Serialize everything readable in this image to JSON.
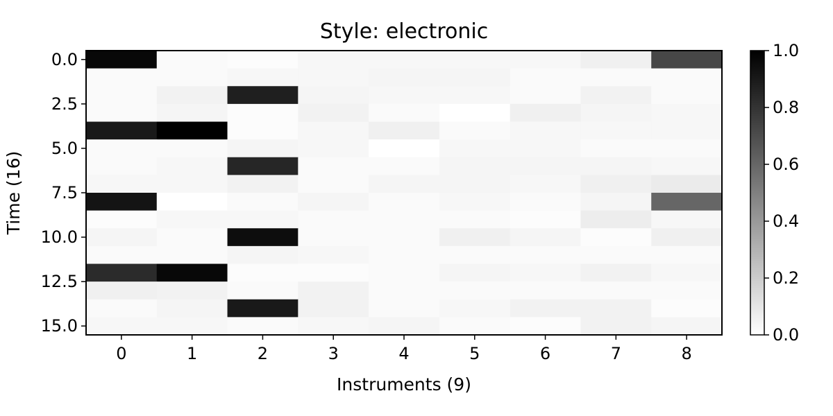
{
  "chart_data": {
    "type": "heatmap",
    "title": "Style: electronic",
    "xlabel": "Instruments (9)",
    "ylabel": "Time (16)",
    "x_categories": [
      "0",
      "1",
      "2",
      "3",
      "4",
      "5",
      "6",
      "7",
      "8"
    ],
    "y_ticks": [
      0.0,
      2.5,
      5.0,
      7.5,
      10.0,
      12.5,
      15.0
    ],
    "y_tick_labels": [
      "0.0",
      "2.5",
      "5.0",
      "7.5",
      "10.0",
      "12.5",
      "15.0"
    ],
    "colorbar": {
      "range": [
        0.0,
        1.0
      ],
      "ticks": [
        "0.0",
        "0.2",
        "0.4",
        "0.6",
        "0.8",
        "1.0"
      ],
      "colormap": "Greys",
      "low_color": "#ffffff",
      "high_color": "#000000"
    },
    "values": [
      [
        0.97,
        0.02,
        0.01,
        0.03,
        0.03,
        0.03,
        0.03,
        0.06,
        0.72
      ],
      [
        0.02,
        0.02,
        0.03,
        0.03,
        0.04,
        0.04,
        0.02,
        0.02,
        0.02
      ],
      [
        0.02,
        0.05,
        0.88,
        0.04,
        0.03,
        0.03,
        0.02,
        0.05,
        0.02
      ],
      [
        0.02,
        0.04,
        0.01,
        0.05,
        0.02,
        0.0,
        0.06,
        0.04,
        0.03
      ],
      [
        0.9,
        1.0,
        0.01,
        0.03,
        0.06,
        0.02,
        0.03,
        0.03,
        0.03
      ],
      [
        0.02,
        0.02,
        0.04,
        0.03,
        0.0,
        0.03,
        0.03,
        0.02,
        0.02
      ],
      [
        0.02,
        0.03,
        0.85,
        0.02,
        0.02,
        0.04,
        0.04,
        0.04,
        0.03
      ],
      [
        0.03,
        0.03,
        0.05,
        0.02,
        0.04,
        0.04,
        0.03,
        0.06,
        0.08
      ],
      [
        0.92,
        0.0,
        0.02,
        0.04,
        0.02,
        0.03,
        0.02,
        0.04,
        0.6
      ],
      [
        0.01,
        0.03,
        0.03,
        0.02,
        0.02,
        0.02,
        0.01,
        0.07,
        0.03
      ],
      [
        0.04,
        0.02,
        0.95,
        0.02,
        0.02,
        0.06,
        0.04,
        0.01,
        0.06
      ],
      [
        0.02,
        0.02,
        0.04,
        0.03,
        0.02,
        0.02,
        0.02,
        0.02,
        0.02
      ],
      [
        0.83,
        0.97,
        0.01,
        0.01,
        0.02,
        0.04,
        0.03,
        0.05,
        0.03
      ],
      [
        0.06,
        0.05,
        0.02,
        0.05,
        0.02,
        0.02,
        0.02,
        0.02,
        0.02
      ],
      [
        0.02,
        0.04,
        0.9,
        0.05,
        0.02,
        0.03,
        0.05,
        0.05,
        0.01
      ],
      [
        0.03,
        0.03,
        0.02,
        0.03,
        0.04,
        0.02,
        0.01,
        0.05,
        0.04
      ]
    ]
  }
}
